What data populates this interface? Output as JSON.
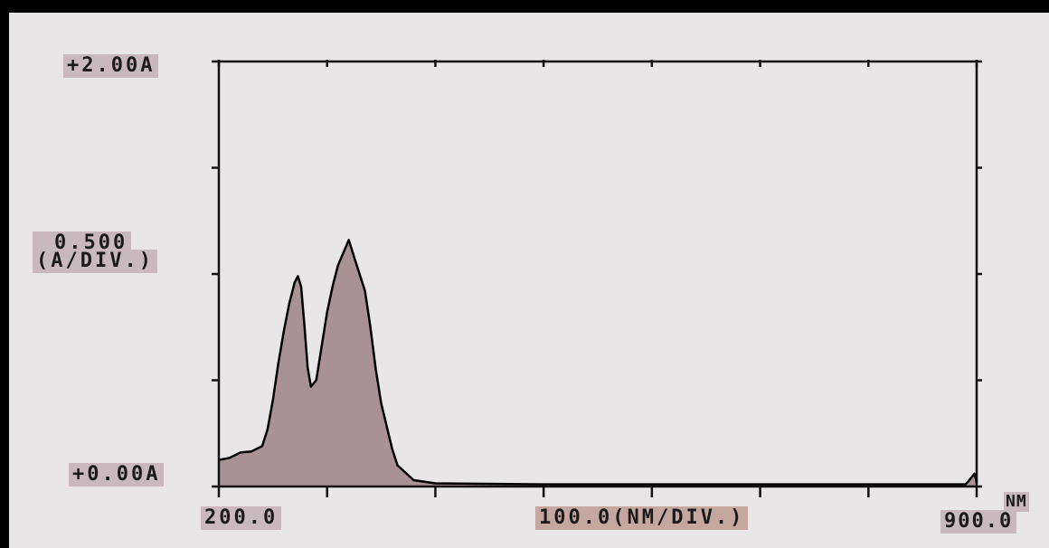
{
  "chart_data": {
    "type": "area",
    "title": "",
    "y_top_label": "+2.00A",
    "y_bottom_label": "+0.00A",
    "y_scale_value": "0.500",
    "y_scale_unit": "(A/DIV.)",
    "x_left_label": "200.0",
    "x_scale_label": "100.0(NM/DIV.)",
    "x_unit": "NM",
    "x_right_label": "900.0",
    "xlim": [
      200,
      900
    ],
    "ylim": [
      0,
      2
    ],
    "grid": false,
    "fill_color": "#a89296",
    "line_color": "#000000",
    "series": [
      {
        "x": [
          200,
          210,
          220,
          230,
          240,
          245,
          250,
          255,
          260,
          265,
          270,
          273,
          276,
          279,
          282,
          285,
          290,
          295,
          300,
          305,
          310,
          315,
          320,
          325,
          330,
          335,
          340,
          345,
          350,
          360,
          365,
          380,
          400,
          500,
          600,
          700,
          800,
          890,
          898,
          900
        ],
        "y": [
          0.125,
          0.135,
          0.16,
          0.165,
          0.19,
          0.27,
          0.41,
          0.58,
          0.73,
          0.86,
          0.96,
          0.99,
          0.94,
          0.76,
          0.56,
          0.47,
          0.5,
          0.66,
          0.82,
          0.94,
          1.04,
          1.1,
          1.16,
          1.08,
          1.0,
          0.92,
          0.75,
          0.55,
          0.39,
          0.18,
          0.1,
          0.03,
          0.015,
          0.01,
          0.01,
          0.01,
          0.01,
          0.01,
          0.06,
          0.02
        ]
      }
    ]
  }
}
